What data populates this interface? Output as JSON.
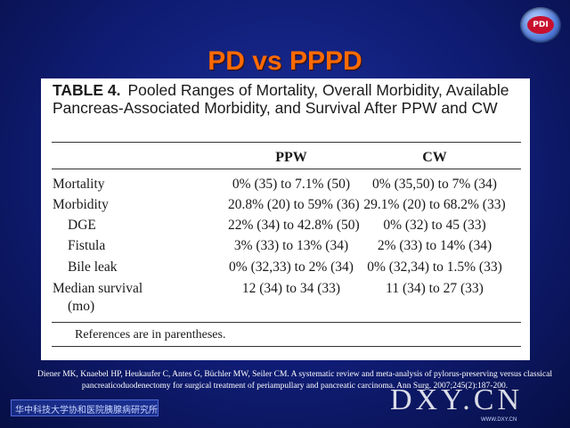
{
  "slide": {
    "title": "PD vs PPPD",
    "logo_text": "PDI",
    "footer_label": "华中科技大学协和医院胰腺病研究所",
    "watermark": "DXY.CN",
    "watermark_url": "WWW.DXY.CN",
    "reference": "Diener MK, Knaebel HP, Heukaufer C, Antes G, Büchler MW, Seiler CM. A systematic review and meta-analysis of pylorus-preserving versus classical pancreaticoduodenectomy for surgical treatment of periampullary and pancreatic carcinoma. Ann Surg. 2007;245(2):187-200."
  },
  "table": {
    "label": "TABLE 4.",
    "caption": "Pooled Ranges of Mortality, Overall Morbidity, Available Pancreas-Associated Morbidity, and Survival After PPW and CW",
    "columns": [
      "PPW",
      "CW"
    ],
    "rows": [
      {
        "label": "Mortality",
        "ppw": "0% (35) to 7.1% (50)",
        "cw": "0% (35,50) to 7% (34)"
      },
      {
        "label": "Morbidity",
        "ppw": "20.8% (20) to 59% (36)",
        "cw": "29.1% (20) to 68.2% (33)"
      },
      {
        "label": "DGE",
        "ppw": "22% (34) to 42.8% (50)",
        "cw": "0% (32) to 45 (33)"
      },
      {
        "label": "Fistula",
        "ppw": "3% (33) to 13% (34)",
        "cw": "2% (33) to 14% (34)"
      },
      {
        "label": "Bile leak",
        "ppw": "0% (32,33) to 2% (34)",
        "cw": "0% (32,34) to 1.5% (33)"
      },
      {
        "label": "Median survival",
        "label2": "(mo)",
        "ppw": "12 (34) to 34 (33)",
        "cw": "11 (34) to 27 (33)"
      }
    ],
    "note": "References are in parentheses."
  }
}
